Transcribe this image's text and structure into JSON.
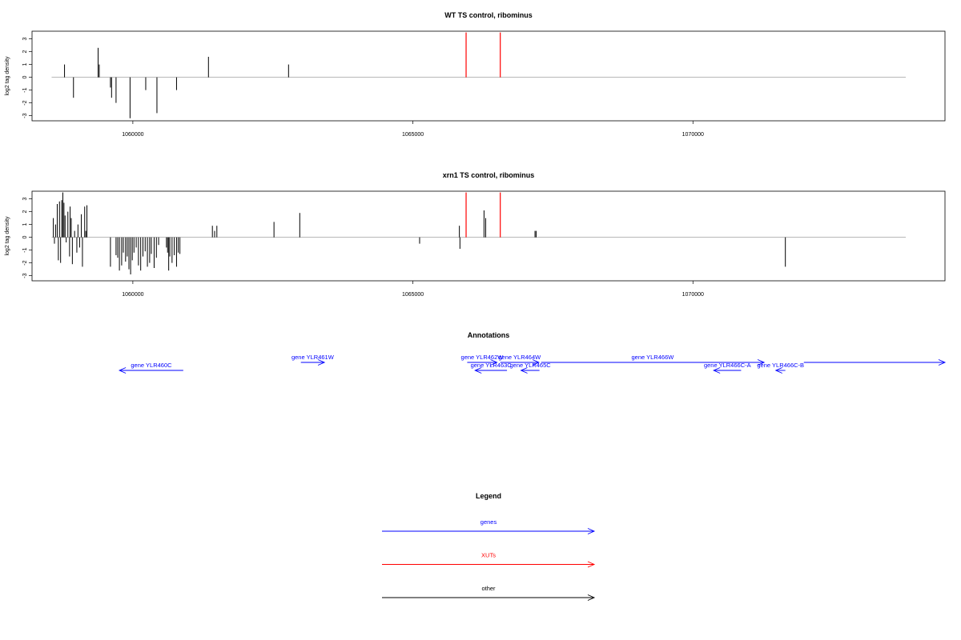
{
  "panels": [
    {
      "title": "WT TS control, ribominus",
      "ylabel": "log2 tag density",
      "xlim": [
        1058200,
        1074500
      ],
      "ylim": [
        -3.4,
        3.6
      ],
      "yticks": [
        -3,
        -2,
        -1,
        0,
        1,
        2,
        3
      ],
      "ytick_labels": [
        "-3",
        "-2",
        "-1",
        "0",
        "1",
        "2",
        "3"
      ],
      "xticks": [
        1060000,
        1065000,
        1070000
      ],
      "xtick_labels": [
        "1060000",
        "1065000",
        "1070000"
      ],
      "baseline_range": [
        1058550,
        1073800
      ],
      "black_bars": [
        {
          "x": 1058780,
          "y": 1.0
        },
        {
          "x": 1058940,
          "y": -1.6
        },
        {
          "x": 1059380,
          "y": 2.3
        },
        {
          "x": 1059400,
          "y": 1.0
        },
        {
          "x": 1059600,
          "y": -0.8
        },
        {
          "x": 1059620,
          "y": -1.6
        },
        {
          "x": 1059700,
          "y": -2.0
        },
        {
          "x": 1059950,
          "y": -3.2
        },
        {
          "x": 1060230,
          "y": -1.0
        },
        {
          "x": 1060430,
          "y": -2.8
        },
        {
          "x": 1060780,
          "y": -1.0
        },
        {
          "x": 1061350,
          "y": 1.6
        },
        {
          "x": 1062780,
          "y": 1.0
        }
      ],
      "red_bars": [
        {
          "x": 1065950,
          "y": 3.5
        },
        {
          "x": 1066560,
          "y": 3.5
        }
      ]
    },
    {
      "title": "xrn1 TS control, ribominus",
      "ylabel": "log2 tag density",
      "xlim": [
        1058200,
        1074500
      ],
      "ylim": [
        -3.4,
        3.6
      ],
      "yticks": [
        -3,
        -2,
        -1,
        0,
        1,
        2,
        3
      ],
      "ytick_labels": [
        "-3",
        "-2",
        "-1",
        "0",
        "1",
        "2",
        "3"
      ],
      "xticks": [
        1060000,
        1065000,
        1070000
      ],
      "xtick_labels": [
        "1060000",
        "1065000",
        "1070000"
      ],
      "baseline_range": [
        1058550,
        1073800
      ],
      "black_bars": [
        {
          "x": 1058580,
          "y": 1.5
        },
        {
          "x": 1058600,
          "y": -0.5
        },
        {
          "x": 1058620,
          "y": 1.0
        },
        {
          "x": 1058650,
          "y": 2.6
        },
        {
          "x": 1058670,
          "y": -1.8
        },
        {
          "x": 1058690,
          "y": 2.8
        },
        {
          "x": 1058710,
          "y": -2.0
        },
        {
          "x": 1058730,
          "y": 2.9
        },
        {
          "x": 1058750,
          "y": 3.5
        },
        {
          "x": 1058770,
          "y": 2.7
        },
        {
          "x": 1058790,
          "y": 1.7
        },
        {
          "x": 1058810,
          "y": -0.4
        },
        {
          "x": 1058840,
          "y": 2.0
        },
        {
          "x": 1058870,
          "y": -1.5
        },
        {
          "x": 1058880,
          "y": 2.4
        },
        {
          "x": 1058900,
          "y": 1.5
        },
        {
          "x": 1058920,
          "y": -2.1
        },
        {
          "x": 1058960,
          "y": 0.5
        },
        {
          "x": 1059000,
          "y": -1.2
        },
        {
          "x": 1059020,
          "y": 1.0
        },
        {
          "x": 1059050,
          "y": -0.8
        },
        {
          "x": 1059080,
          "y": 1.8
        },
        {
          "x": 1059100,
          "y": -2.3
        },
        {
          "x": 1059140,
          "y": 2.4
        },
        {
          "x": 1059160,
          "y": 0.5
        },
        {
          "x": 1059180,
          "y": 2.5
        },
        {
          "x": 1059600,
          "y": -2.3
        },
        {
          "x": 1059700,
          "y": -1.4
        },
        {
          "x": 1059730,
          "y": -1.6
        },
        {
          "x": 1059760,
          "y": -2.6
        },
        {
          "x": 1059800,
          "y": -2.2
        },
        {
          "x": 1059830,
          "y": -1.2
        },
        {
          "x": 1059870,
          "y": -1.9
        },
        {
          "x": 1059900,
          "y": -1.5
        },
        {
          "x": 1059930,
          "y": -2.5
        },
        {
          "x": 1059960,
          "y": -2.9
        },
        {
          "x": 1059990,
          "y": -1.8
        },
        {
          "x": 1060020,
          "y": -1.2
        },
        {
          "x": 1060060,
          "y": -0.8
        },
        {
          "x": 1060100,
          "y": -2.2
        },
        {
          "x": 1060140,
          "y": -2.6
        },
        {
          "x": 1060180,
          "y": -1.5
        },
        {
          "x": 1060220,
          "y": -1.1
        },
        {
          "x": 1060260,
          "y": -2.3
        },
        {
          "x": 1060300,
          "y": -2.0
        },
        {
          "x": 1060330,
          "y": -1.3
        },
        {
          "x": 1060380,
          "y": -2.4
        },
        {
          "x": 1060420,
          "y": -1.6
        },
        {
          "x": 1060460,
          "y": -0.6
        },
        {
          "x": 1060600,
          "y": -0.8
        },
        {
          "x": 1060620,
          "y": -1.2
        },
        {
          "x": 1060640,
          "y": -2.6
        },
        {
          "x": 1060660,
          "y": -1.5
        },
        {
          "x": 1060700,
          "y": -2.0
        },
        {
          "x": 1060740,
          "y": -1.4
        },
        {
          "x": 1060780,
          "y": -2.3
        },
        {
          "x": 1060810,
          "y": -1.2
        },
        {
          "x": 1060840,
          "y": -1.3
        },
        {
          "x": 1061420,
          "y": 0.9
        },
        {
          "x": 1061460,
          "y": 0.5
        },
        {
          "x": 1061500,
          "y": 0.9
        },
        {
          "x": 1062520,
          "y": 1.2
        },
        {
          "x": 1062980,
          "y": 1.9
        },
        {
          "x": 1065120,
          "y": -0.5
        },
        {
          "x": 1065830,
          "y": 0.9
        },
        {
          "x": 1065840,
          "y": -0.9
        },
        {
          "x": 1066270,
          "y": 2.1
        },
        {
          "x": 1066300,
          "y": 1.5
        },
        {
          "x": 1067180,
          "y": 0.5
        },
        {
          "x": 1067200,
          "y": 0.5
        },
        {
          "x": 1071650,
          "y": -2.3
        }
      ],
      "red_bars": [
        {
          "x": 1065950,
          "y": 3.5
        },
        {
          "x": 1066560,
          "y": 3.5
        }
      ]
    }
  ],
  "annotations": {
    "title": "Annotations",
    "genes": [
      {
        "label": "gene YLR460C",
        "start": 1060900,
        "end": 1059760,
        "row": 2
      },
      {
        "label": "gene YLR461W",
        "start": 1063000,
        "end": 1063420,
        "row": 1
      },
      {
        "label": "gene YLR462W",
        "start": 1065970,
        "end": 1066500,
        "row": 1
      },
      {
        "label": "gene YLR463C",
        "start": 1066680,
        "end": 1066110,
        "row": 2
      },
      {
        "label": "gene YLR464W",
        "start": 1066560,
        "end": 1067250,
        "row": 1
      },
      {
        "label": "gene YLR465C",
        "start": 1067260,
        "end": 1066930,
        "row": 2
      },
      {
        "label": "gene YLR466W",
        "start": 1067290,
        "end": 1071270,
        "row": 1
      },
      {
        "label": "gene YLR466C-A",
        "start": 1070860,
        "end": 1070370,
        "row": 2
      },
      {
        "label": "gene YLR466C-B",
        "start": 1071650,
        "end": 1071480,
        "row": 2
      },
      {
        "label": "",
        "start": 1071980,
        "end": 1074500,
        "row": 1
      }
    ]
  },
  "legend": {
    "title": "Legend",
    "items": [
      {
        "label": "genes",
        "color": "#0000ff"
      },
      {
        "label": "XUTs",
        "color": "#ff0000"
      },
      {
        "label": "other",
        "color": "#000000"
      }
    ]
  },
  "colors": {
    "gene": "#0000ff",
    "xut": "#ff0000",
    "other": "#000000",
    "baseline": "#a0a0a0"
  }
}
